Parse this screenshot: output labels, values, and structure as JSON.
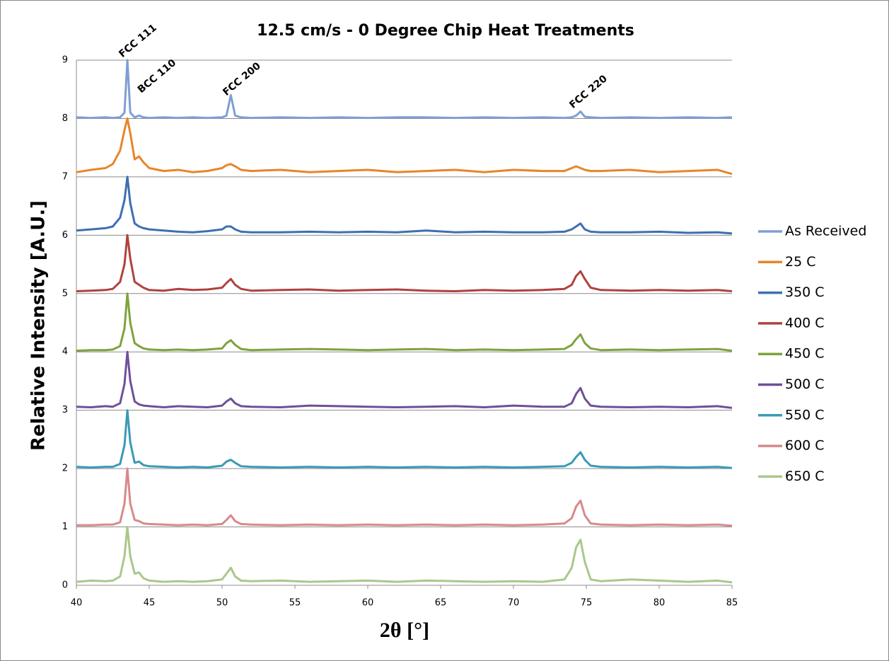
{
  "chart_data": {
    "type": "line",
    "title": "12.5 cm/s - 0 Degree Chip Heat Treatments",
    "xlabel": "2θ [°]",
    "ylabel": "Relative Intensity [A.U.]",
    "annotations": [
      "FCC 111",
      "BCC 110",
      "FCC 200",
      "FCC 220"
    ],
    "x": [
      40,
      41,
      42,
      42.5,
      43,
      43.3,
      43.5,
      43.7,
      44,
      44.3,
      44.6,
      45,
      46,
      47,
      48,
      49,
      50,
      50.3,
      50.6,
      50.9,
      51.3,
      52,
      54,
      56,
      58,
      60,
      62,
      64,
      66,
      68,
      70,
      72,
      73.5,
      74,
      74.3,
      74.6,
      74.9,
      75.3,
      76,
      78,
      80,
      82,
      84,
      85
    ],
    "xlim": [
      40,
      85
    ],
    "xticks": [
      40,
      45,
      50,
      55,
      60,
      65,
      70,
      75,
      80,
      85
    ],
    "ylim": [
      0,
      9
    ],
    "yticks": [
      0,
      1,
      2,
      3,
      4,
      5,
      6,
      7,
      8,
      9
    ],
    "grid": true,
    "legend": "right",
    "series": [
      {
        "name": "As Received",
        "color": "#7f9fd4",
        "values": [
          8.02,
          8.01,
          8.02,
          8.01,
          8.02,
          8.1,
          9.0,
          8.1,
          8.02,
          8.05,
          8.02,
          8.01,
          8.02,
          8.01,
          8.02,
          8.01,
          8.02,
          8.05,
          8.4,
          8.05,
          8.02,
          8.01,
          8.02,
          8.01,
          8.02,
          8.01,
          8.02,
          8.02,
          8.01,
          8.02,
          8.01,
          8.02,
          8.01,
          8.02,
          8.05,
          8.12,
          8.03,
          8.02,
          8.01,
          8.02,
          8.01,
          8.02,
          8.01,
          8.02
        ]
      },
      {
        "name": "25 C",
        "color": "#e8852a",
        "values": [
          7.08,
          7.12,
          7.15,
          7.22,
          7.45,
          7.8,
          8.0,
          7.75,
          7.3,
          7.35,
          7.25,
          7.15,
          7.1,
          7.12,
          7.08,
          7.1,
          7.15,
          7.2,
          7.22,
          7.18,
          7.12,
          7.1,
          7.12,
          7.08,
          7.1,
          7.12,
          7.08,
          7.1,
          7.12,
          7.08,
          7.12,
          7.1,
          7.1,
          7.15,
          7.18,
          7.15,
          7.12,
          7.1,
          7.1,
          7.12,
          7.08,
          7.1,
          7.12,
          7.05
        ]
      },
      {
        "name": "350 C",
        "color": "#3e6fb0",
        "values": [
          6.08,
          6.1,
          6.12,
          6.15,
          6.3,
          6.6,
          7.0,
          6.55,
          6.2,
          6.15,
          6.12,
          6.1,
          6.08,
          6.06,
          6.05,
          6.07,
          6.1,
          6.15,
          6.15,
          6.1,
          6.06,
          6.05,
          6.05,
          6.06,
          6.05,
          6.06,
          6.05,
          6.08,
          6.05,
          6.06,
          6.05,
          6.05,
          6.06,
          6.1,
          6.15,
          6.2,
          6.1,
          6.06,
          6.05,
          6.05,
          6.06,
          6.04,
          6.05,
          6.03
        ]
      },
      {
        "name": "400 C",
        "color": "#b0413e",
        "values": [
          5.04,
          5.05,
          5.06,
          5.08,
          5.2,
          5.5,
          6.0,
          5.6,
          5.2,
          5.15,
          5.1,
          5.06,
          5.05,
          5.08,
          5.06,
          5.07,
          5.1,
          5.18,
          5.25,
          5.15,
          5.08,
          5.05,
          5.06,
          5.07,
          5.05,
          5.06,
          5.07,
          5.05,
          5.04,
          5.06,
          5.05,
          5.06,
          5.08,
          5.15,
          5.3,
          5.38,
          5.25,
          5.1,
          5.06,
          5.05,
          5.06,
          5.05,
          5.06,
          5.04
        ]
      },
      {
        "name": "450 C",
        "color": "#7ea33c",
        "values": [
          4.02,
          4.03,
          4.03,
          4.04,
          4.1,
          4.4,
          5.0,
          4.5,
          4.15,
          4.1,
          4.06,
          4.04,
          4.03,
          4.04,
          4.03,
          4.04,
          4.06,
          4.15,
          4.2,
          4.12,
          4.05,
          4.03,
          4.04,
          4.05,
          4.04,
          4.03,
          4.04,
          4.05,
          4.03,
          4.04,
          4.03,
          4.04,
          4.05,
          4.12,
          4.22,
          4.3,
          4.15,
          4.06,
          4.03,
          4.04,
          4.03,
          4.04,
          4.05,
          4.02
        ]
      },
      {
        "name": "500 C",
        "color": "#6f4f9a",
        "values": [
          3.06,
          3.05,
          3.07,
          3.06,
          3.12,
          3.45,
          4.0,
          3.5,
          3.15,
          3.1,
          3.08,
          3.07,
          3.05,
          3.07,
          3.06,
          3.05,
          3.08,
          3.15,
          3.2,
          3.12,
          3.07,
          3.06,
          3.05,
          3.08,
          3.07,
          3.06,
          3.05,
          3.06,
          3.07,
          3.05,
          3.08,
          3.06,
          3.06,
          3.12,
          3.28,
          3.38,
          3.2,
          3.08,
          3.06,
          3.05,
          3.06,
          3.05,
          3.07,
          3.04
        ]
      },
      {
        "name": "550 C",
        "color": "#3a9ab5",
        "values": [
          2.03,
          2.02,
          2.03,
          2.03,
          2.08,
          2.4,
          3.0,
          2.45,
          2.1,
          2.12,
          2.06,
          2.04,
          2.03,
          2.02,
          2.03,
          2.02,
          2.05,
          2.12,
          2.15,
          2.1,
          2.04,
          2.03,
          2.02,
          2.03,
          2.02,
          2.03,
          2.02,
          2.03,
          2.02,
          2.03,
          2.02,
          2.03,
          2.04,
          2.1,
          2.2,
          2.28,
          2.15,
          2.05,
          2.03,
          2.02,
          2.03,
          2.02,
          2.03,
          2.01
        ]
      },
      {
        "name": "600 C",
        "color": "#d8898a",
        "values": [
          1.03,
          1.03,
          1.04,
          1.04,
          1.08,
          1.4,
          2.0,
          1.4,
          1.12,
          1.1,
          1.06,
          1.05,
          1.04,
          1.03,
          1.04,
          1.03,
          1.05,
          1.12,
          1.2,
          1.1,
          1.05,
          1.04,
          1.03,
          1.04,
          1.03,
          1.04,
          1.03,
          1.04,
          1.03,
          1.04,
          1.03,
          1.04,
          1.06,
          1.15,
          1.35,
          1.45,
          1.2,
          1.06,
          1.04,
          1.03,
          1.04,
          1.03,
          1.04,
          1.02
        ]
      },
      {
        "name": "650 C",
        "color": "#a9c88a",
        "values": [
          0.06,
          0.08,
          0.07,
          0.08,
          0.15,
          0.5,
          1.0,
          0.5,
          0.2,
          0.22,
          0.12,
          0.08,
          0.06,
          0.07,
          0.06,
          0.07,
          0.1,
          0.2,
          0.3,
          0.15,
          0.08,
          0.07,
          0.08,
          0.06,
          0.07,
          0.08,
          0.06,
          0.08,
          0.07,
          0.06,
          0.07,
          0.06,
          0.1,
          0.3,
          0.65,
          0.78,
          0.4,
          0.1,
          0.07,
          0.1,
          0.08,
          0.06,
          0.08,
          0.05
        ]
      }
    ]
  }
}
